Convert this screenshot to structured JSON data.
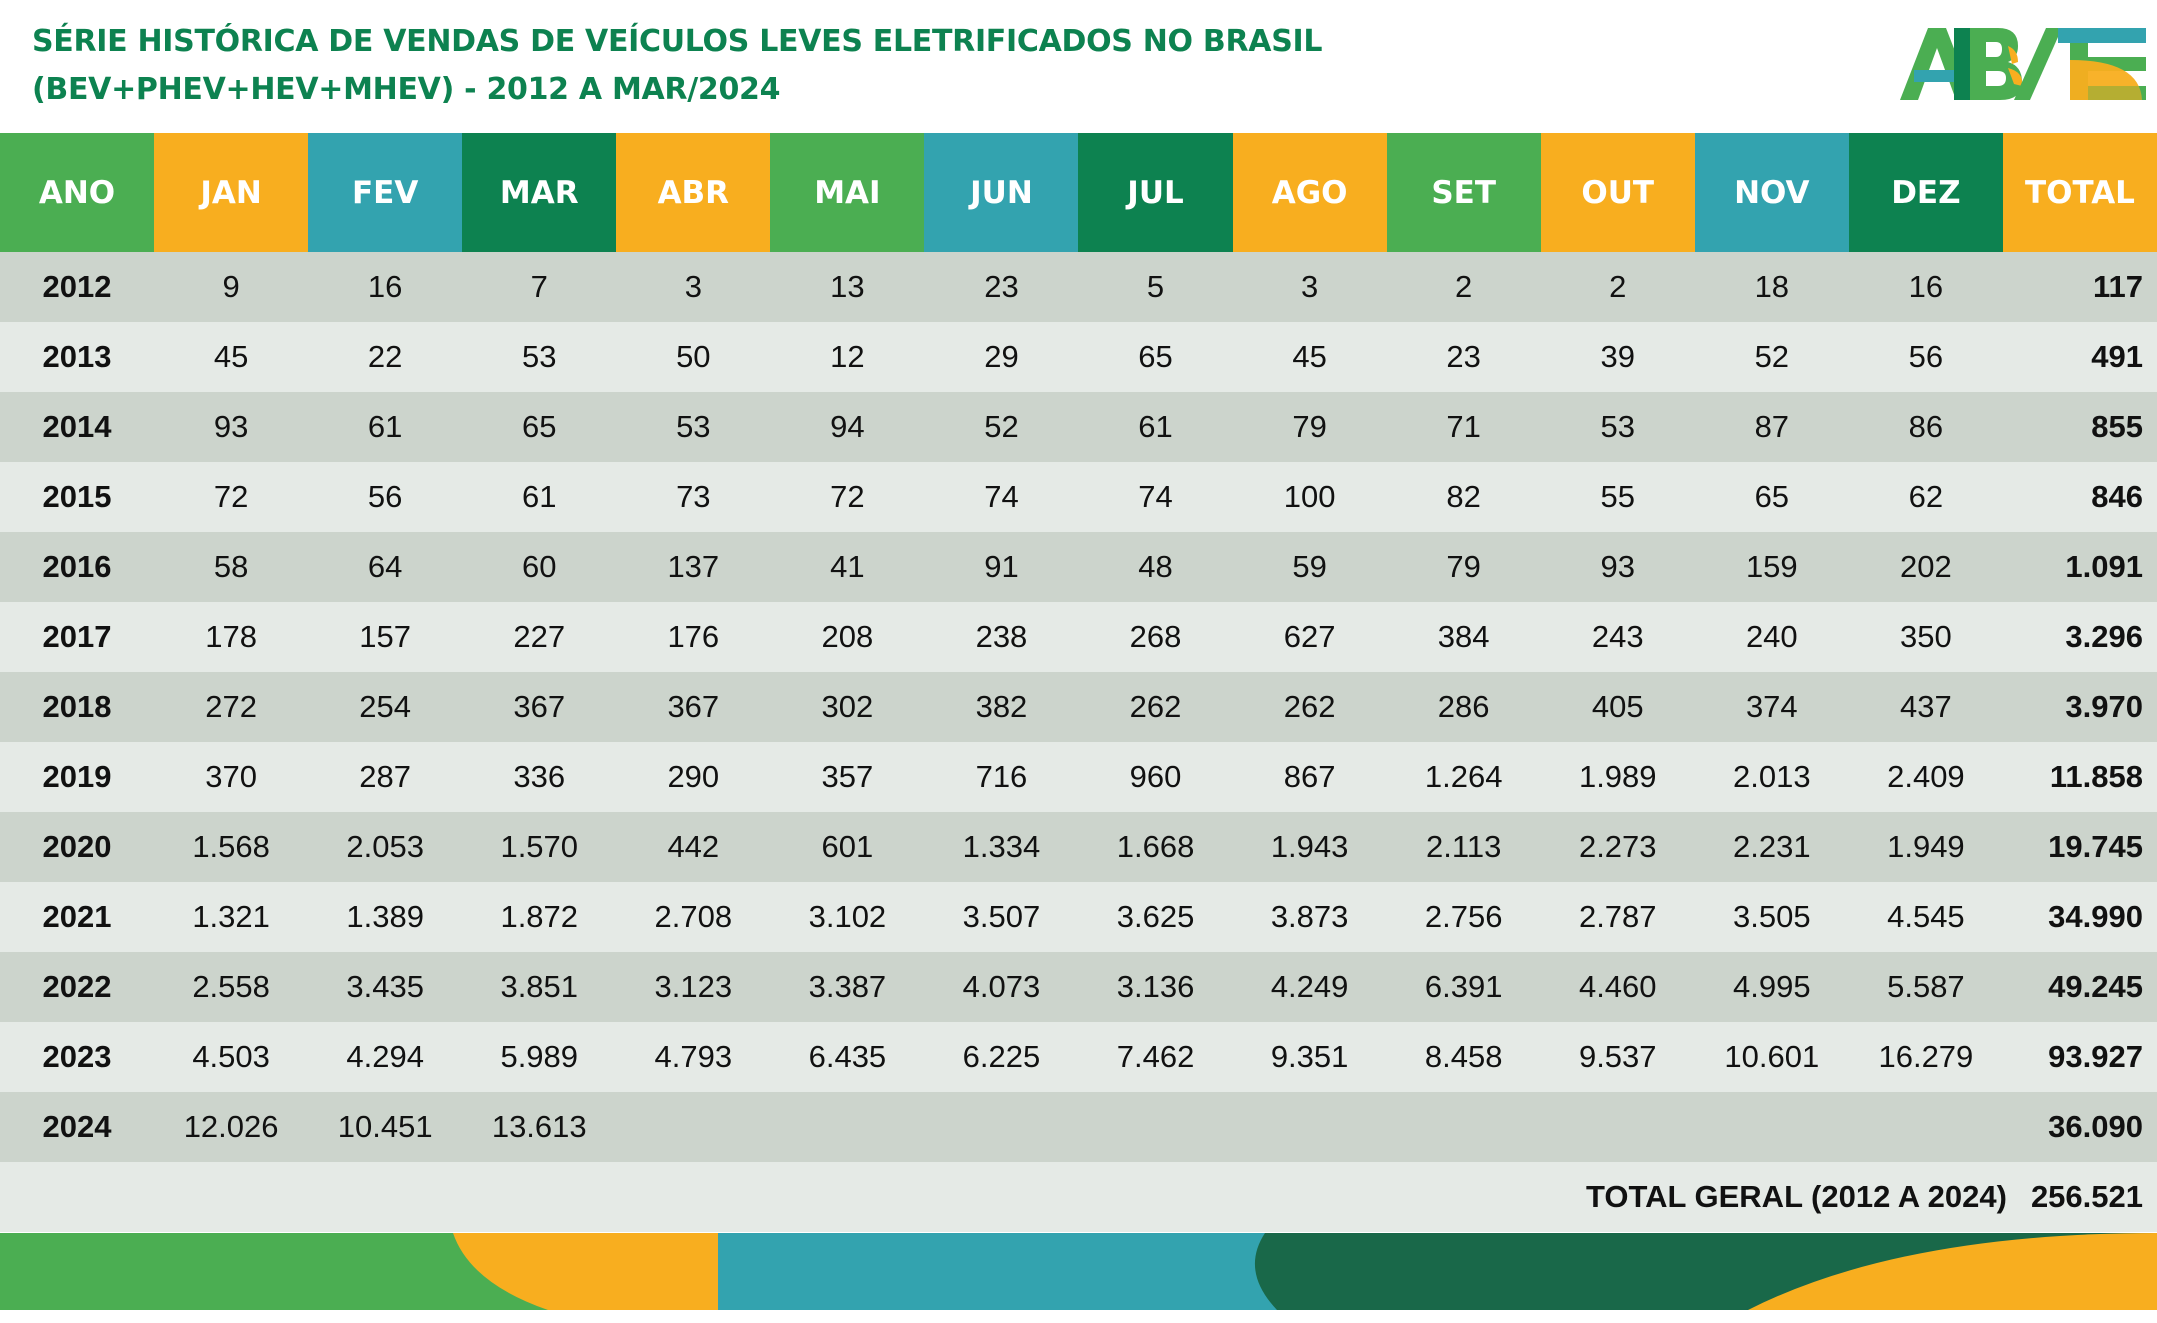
{
  "title": {
    "line1": "SÉRIE HISTÓRICA DE VENDAS DE VEÍCULOS LEVES ELETRIFICADOS NO BRASIL",
    "line2": "(BEV+PHEV+HEV+MHEV) - 2012 A MAR/2024"
  },
  "logo": {
    "text": "ABVE"
  },
  "colors": {
    "green": "#4bae52",
    "orange": "#f8ae1f",
    "teal": "#33a3af",
    "dark_green": "#0d8250",
    "band_dark": "#196849"
  },
  "headers": [
    {
      "label": "ANO",
      "color": "#4bae52"
    },
    {
      "label": "JAN",
      "color": "#f8ae1f"
    },
    {
      "label": "FEV",
      "color": "#33a3af"
    },
    {
      "label": "MAR",
      "color": "#0d8250"
    },
    {
      "label": "ABR",
      "color": "#f8ae1f"
    },
    {
      "label": "MAI",
      "color": "#4bae52"
    },
    {
      "label": "JUN",
      "color": "#33a3af"
    },
    {
      "label": "JUL",
      "color": "#0d8250"
    },
    {
      "label": "AGO",
      "color": "#f8ae1f"
    },
    {
      "label": "SET",
      "color": "#4bae52"
    },
    {
      "label": "OUT",
      "color": "#f8ae1f"
    },
    {
      "label": "NOV",
      "color": "#33a3af"
    },
    {
      "label": "DEZ",
      "color": "#0d8250"
    },
    {
      "label": "TOTAL",
      "color": "#f8ae1f"
    }
  ],
  "rows": [
    {
      "year": "2012",
      "months": [
        "9",
        "16",
        "7",
        "3",
        "13",
        "23",
        "5",
        "3",
        "2",
        "2",
        "18",
        "16"
      ],
      "total": "117"
    },
    {
      "year": "2013",
      "months": [
        "45",
        "22",
        "53",
        "50",
        "12",
        "29",
        "65",
        "45",
        "23",
        "39",
        "52",
        "56"
      ],
      "total": "491"
    },
    {
      "year": "2014",
      "months": [
        "93",
        "61",
        "65",
        "53",
        "94",
        "52",
        "61",
        "79",
        "71",
        "53",
        "87",
        "86"
      ],
      "total": "855"
    },
    {
      "year": "2015",
      "months": [
        "72",
        "56",
        "61",
        "73",
        "72",
        "74",
        "74",
        "100",
        "82",
        "55",
        "65",
        "62"
      ],
      "total": "846"
    },
    {
      "year": "2016",
      "months": [
        "58",
        "64",
        "60",
        "137",
        "41",
        "91",
        "48",
        "59",
        "79",
        "93",
        "159",
        "202"
      ],
      "total": "1.091"
    },
    {
      "year": "2017",
      "months": [
        "178",
        "157",
        "227",
        "176",
        "208",
        "238",
        "268",
        "627",
        "384",
        "243",
        "240",
        "350"
      ],
      "total": "3.296"
    },
    {
      "year": "2018",
      "months": [
        "272",
        "254",
        "367",
        "367",
        "302",
        "382",
        "262",
        "262",
        "286",
        "405",
        "374",
        "437"
      ],
      "total": "3.970"
    },
    {
      "year": "2019",
      "months": [
        "370",
        "287",
        "336",
        "290",
        "357",
        "716",
        "960",
        "867",
        "1.264",
        "1.989",
        "2.013",
        "2.409"
      ],
      "total": "11.858"
    },
    {
      "year": "2020",
      "months": [
        "1.568",
        "2.053",
        "1.570",
        "442",
        "601",
        "1.334",
        "1.668",
        "1.943",
        "2.113",
        "2.273",
        "2.231",
        "1.949"
      ],
      "total": "19.745"
    },
    {
      "year": "2021",
      "months": [
        "1.321",
        "1.389",
        "1.872",
        "2.708",
        "3.102",
        "3.507",
        "3.625",
        "3.873",
        "2.756",
        "2.787",
        "3.505",
        "4.545"
      ],
      "total": "34.990"
    },
    {
      "year": "2022",
      "months": [
        "2.558",
        "3.435",
        "3.851",
        "3.123",
        "3.387",
        "4.073",
        "3.136",
        "4.249",
        "6.391",
        "4.460",
        "4.995",
        "5.587"
      ],
      "total": "49.245"
    },
    {
      "year": "2023",
      "months": [
        "4.503",
        "4.294",
        "5.989",
        "4.793",
        "6.435",
        "6.225",
        "7.462",
        "9.351",
        "8.458",
        "9.537",
        "10.601",
        "16.279"
      ],
      "total": "93.927"
    },
    {
      "year": "2024",
      "months": [
        "12.026",
        "10.451",
        "13.613",
        "",
        "",
        "",
        "",
        "",
        "",
        "",
        "",
        ""
      ],
      "total": "36.090"
    }
  ],
  "grand_total": {
    "label": "TOTAL GERAL (2012 A 2024)",
    "value": "256.521"
  }
}
